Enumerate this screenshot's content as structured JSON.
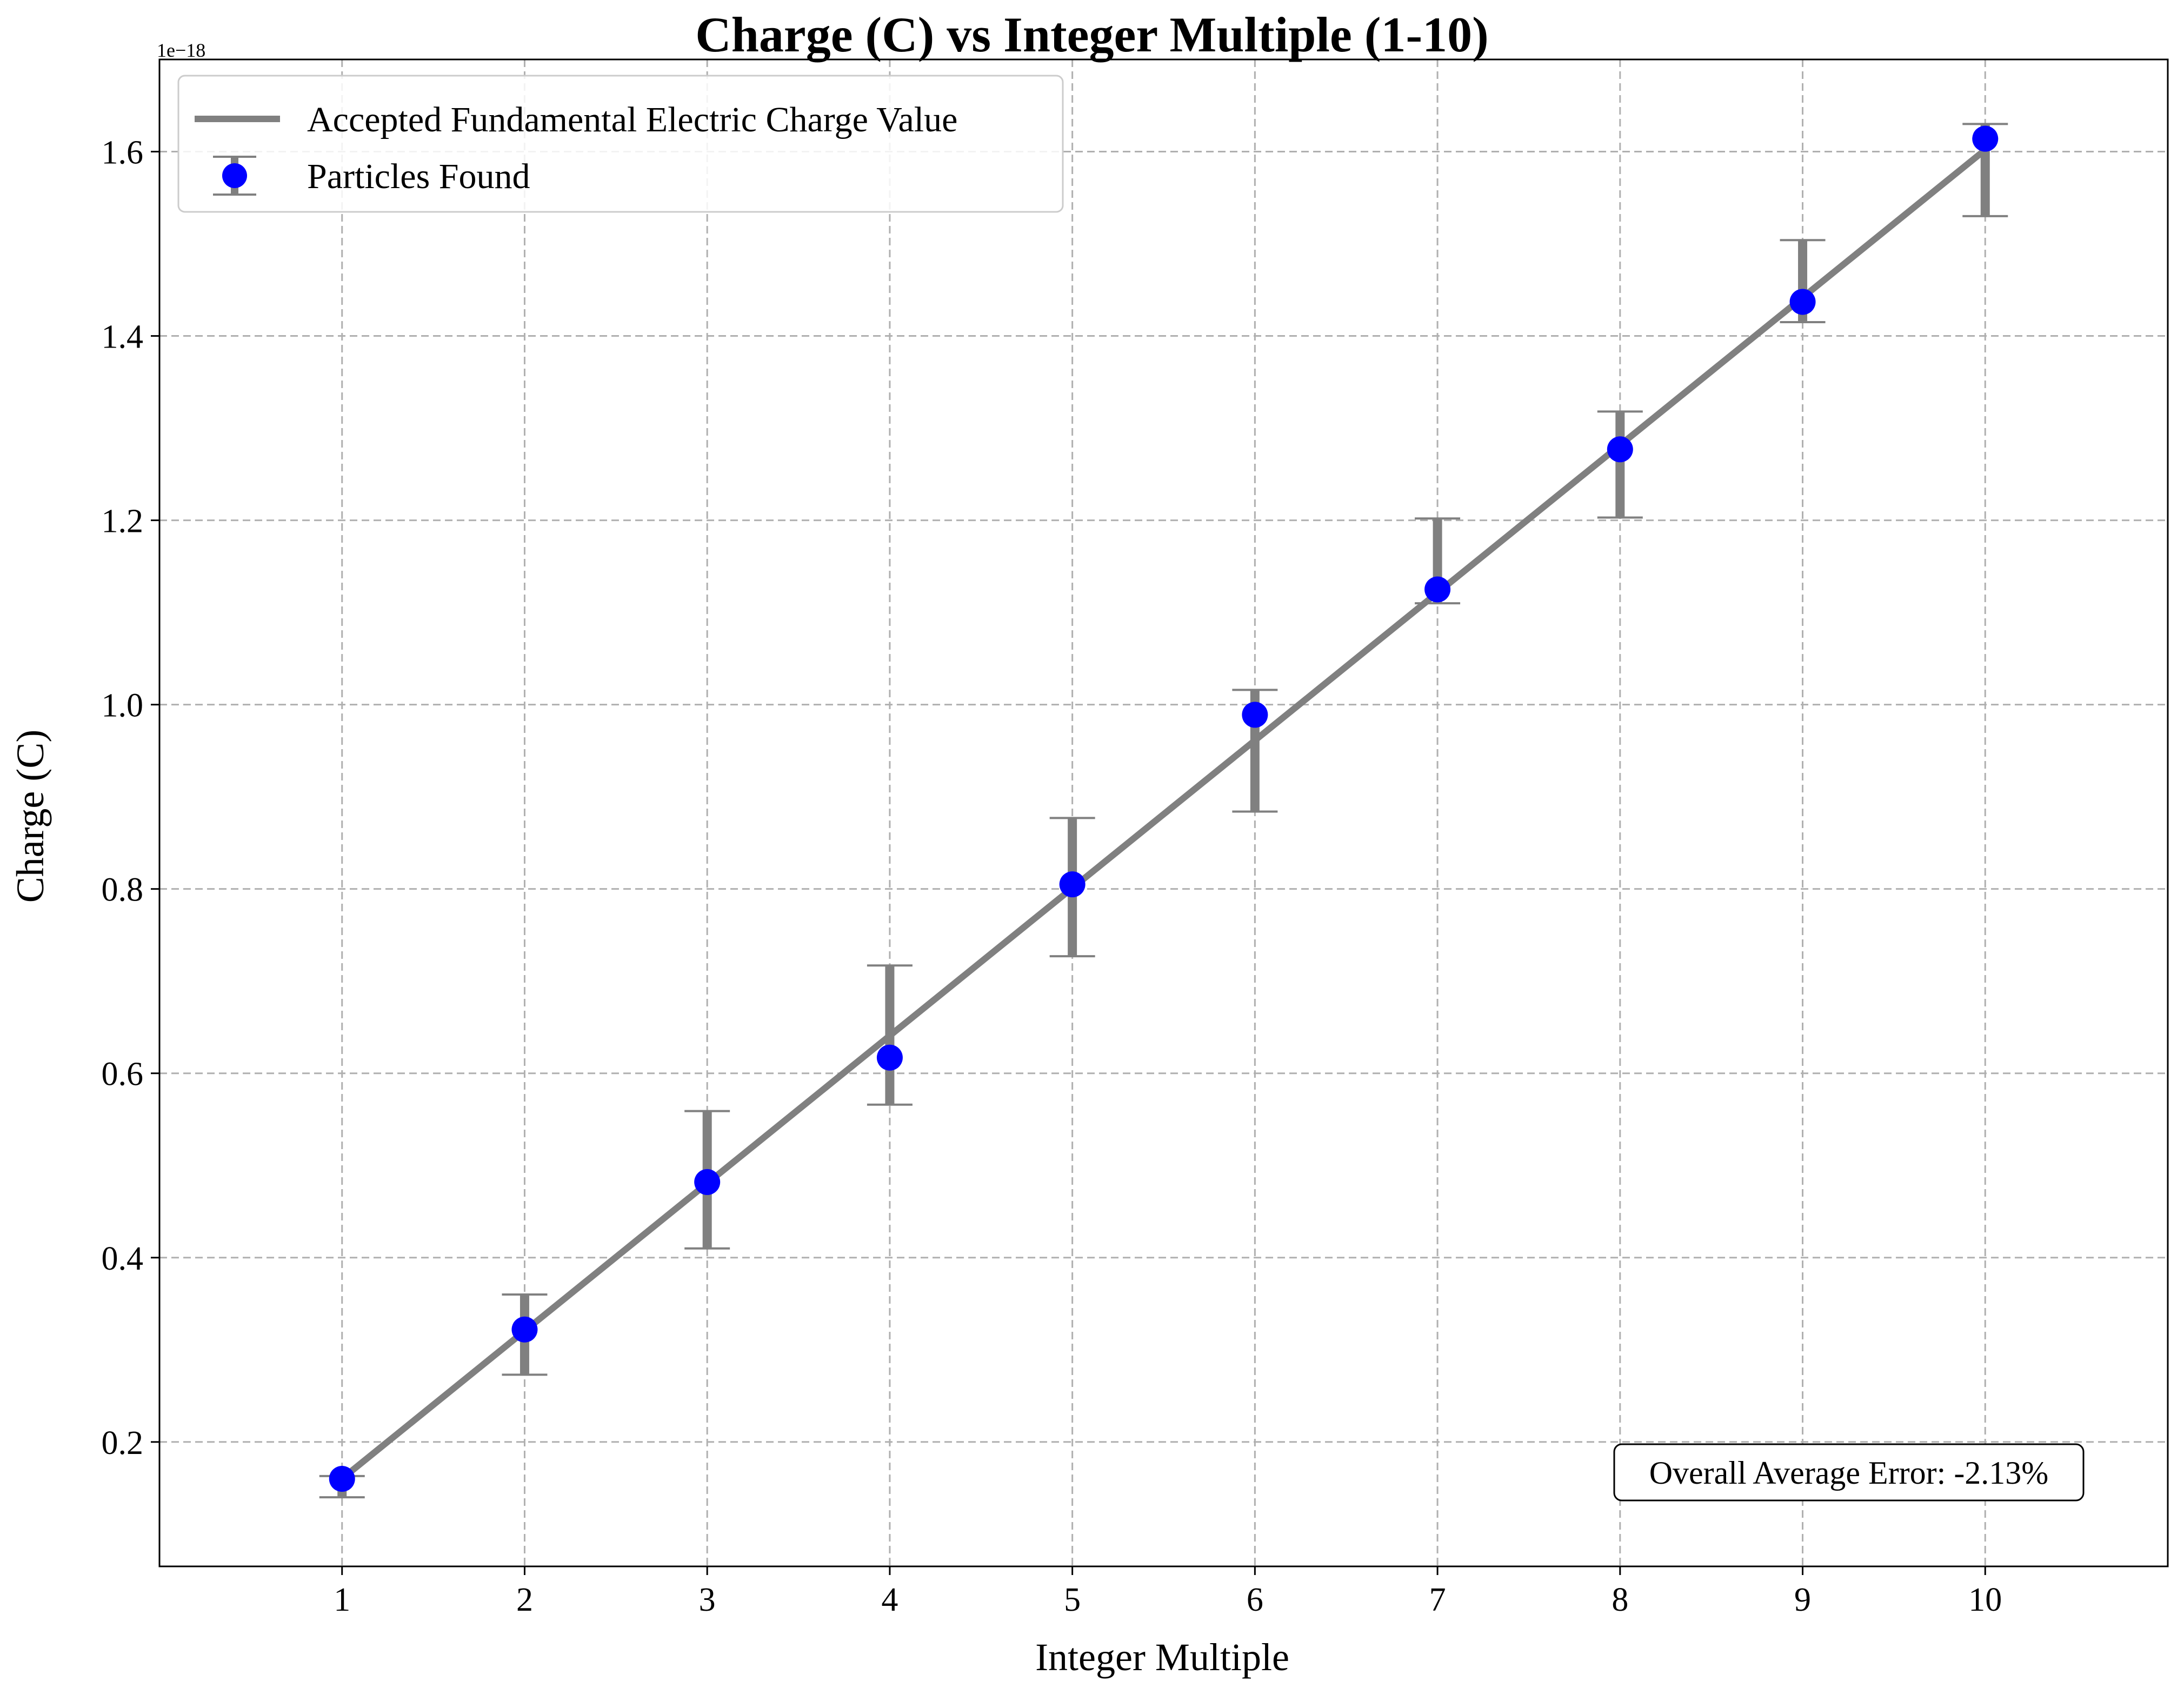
{
  "chart_data": {
    "type": "scatter",
    "title": "Charge (C) vs Integer Multiple (1-10)",
    "xlabel": "Integer Multiple",
    "ylabel": "Charge (C)",
    "y_scale_label": "1e−18",
    "xlim": [
      0,
      11
    ],
    "ylim": [
      0.065,
      1.7
    ],
    "x_ticks": [
      1,
      2,
      3,
      4,
      5,
      6,
      7,
      8,
      9,
      10
    ],
    "y_ticks": [
      0.2,
      0.4,
      0.6,
      0.8,
      1.0,
      1.2,
      1.4,
      1.6
    ],
    "y_tick_labels": [
      "0.2",
      "0.4",
      "0.6",
      "0.8",
      "1.0",
      "1.2",
      "1.4",
      "1.6"
    ],
    "grid": true,
    "legend_position": "top-left",
    "series": [
      {
        "name": "Accepted Fundamental Electric Charge Value",
        "kind": "line",
        "color": "#808080",
        "x": [
          1,
          10
        ],
        "y": [
          0.1602,
          1.602
        ]
      },
      {
        "name": "Particles Found",
        "kind": "errorbar",
        "color": "#0000ff",
        "error_color": "#808080",
        "x": [
          1,
          2,
          3,
          4,
          5,
          6,
          7,
          8,
          9,
          10
        ],
        "y": [
          0.16,
          0.322,
          0.482,
          0.617,
          0.805,
          0.989,
          1.125,
          1.277,
          1.437,
          1.614
        ],
        "y_lower": [
          0.14,
          0.273,
          0.41,
          0.566,
          0.727,
          0.884,
          1.11,
          1.203,
          1.415,
          1.53
        ],
        "y_upper": [
          0.163,
          0.36,
          0.559,
          0.717,
          0.877,
          1.016,
          1.202,
          1.318,
          1.504,
          1.63
        ]
      }
    ],
    "annotation": "Overall Average Error: -2.13%"
  }
}
